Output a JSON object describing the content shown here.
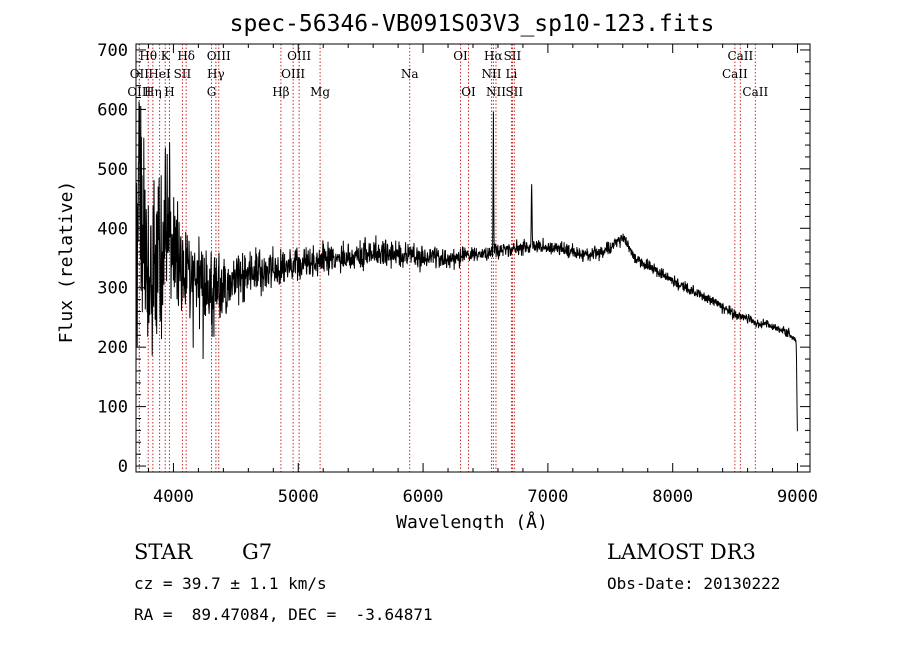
{
  "chart_data": {
    "type": "line",
    "title": "spec-56346-VB091S03V3_sp10-123.fits",
    "xlabel": "Wavelength (Å)",
    "ylabel": "Flux (relative)",
    "xlim": [
      3700,
      9100
    ],
    "ylim": [
      -10,
      710
    ],
    "xticks": [
      4000,
      5000,
      6000,
      7000,
      8000,
      9000
    ],
    "yticks": [
      0,
      100,
      200,
      300,
      400,
      500,
      600,
      700
    ],
    "continuum_anchors": [
      [
        3700,
        180
      ],
      [
        3720,
        520
      ],
      [
        3750,
        380
      ],
      [
        3800,
        350
      ],
      [
        3850,
        330
      ],
      [
        3900,
        360
      ],
      [
        3950,
        390
      ],
      [
        4000,
        370
      ],
      [
        4100,
        330
      ],
      [
        4200,
        300
      ],
      [
        4300,
        290
      ],
      [
        4400,
        300
      ],
      [
        4500,
        315
      ],
      [
        4700,
        325
      ],
      [
        4900,
        335
      ],
      [
        5000,
        340
      ],
      [
        5200,
        345
      ],
      [
        5400,
        352
      ],
      [
        5600,
        358
      ],
      [
        5800,
        355
      ],
      [
        6000,
        352
      ],
      [
        6200,
        350
      ],
      [
        6400,
        355
      ],
      [
        6550,
        360
      ],
      [
        6700,
        365
      ],
      [
        6900,
        370
      ],
      [
        7100,
        365
      ],
      [
        7300,
        355
      ],
      [
        7500,
        365
      ],
      [
        7600,
        385
      ],
      [
        7700,
        350
      ],
      [
        7900,
        325
      ],
      [
        8100,
        300
      ],
      [
        8300,
        280
      ],
      [
        8500,
        255
      ],
      [
        8700,
        240
      ],
      [
        8900,
        228
      ],
      [
        8990,
        210
      ],
      [
        9000,
        40
      ]
    ],
    "noise_anchors": [
      [
        3700,
        200
      ],
      [
        3800,
        160
      ],
      [
        3900,
        130
      ],
      [
        4000,
        95
      ],
      [
        4200,
        80
      ],
      [
        4400,
        60
      ],
      [
        4600,
        40
      ],
      [
        5000,
        28
      ],
      [
        6000,
        18
      ],
      [
        6500,
        14
      ],
      [
        7000,
        12
      ],
      [
        8000,
        9
      ],
      [
        9000,
        7
      ]
    ],
    "emission_features": [
      {
        "x": 6563,
        "height": 240,
        "width": 3
      },
      {
        "x": 6870,
        "height": 105,
        "width": 4
      },
      {
        "x": 3968,
        "height": 150,
        "width": 3
      },
      {
        "x": 3934,
        "height": 110,
        "width": 3
      }
    ],
    "spectral_lines": [
      {
        "label": "Hθ",
        "x": 3798,
        "row": 0
      },
      {
        "label": "OII",
        "x": 3727,
        "row": 1
      },
      {
        "label": "OIII",
        "x": 3727,
        "row": 2
      },
      {
        "label": "Hη",
        "x": 3835,
        "row": 2
      },
      {
        "label": "HeI",
        "x": 3889,
        "row": 1
      },
      {
        "label": "K",
        "x": 3934,
        "row": 0
      },
      {
        "label": "H",
        "x": 3968,
        "row": 2
      },
      {
        "label": "Hδ",
        "x": 4102,
        "row": 0
      },
      {
        "label": "SII",
        "x": 4072,
        "row": 1
      },
      {
        "label": "OIII",
        "x": 4363,
        "row": 0
      },
      {
        "label": "Hγ",
        "x": 4340,
        "row": 1
      },
      {
        "label": "G",
        "x": 4305,
        "row": 2
      },
      {
        "label": "OIII",
        "x": 5007,
        "row": 0
      },
      {
        "label": "OIII",
        "x": 4959,
        "row": 1
      },
      {
        "label": "Hβ",
        "x": 4861,
        "row": 2
      },
      {
        "label": "Mg",
        "x": 5175,
        "row": 2
      },
      {
        "label": "Na",
        "x": 5893,
        "row": 1
      },
      {
        "label": "OI",
        "x": 6300,
        "row": 0
      },
      {
        "label": "OI",
        "x": 6364,
        "row": 2
      },
      {
        "label": "Hα",
        "x": 6563,
        "row": 0
      },
      {
        "label": "SII",
        "x": 6716,
        "row": 0
      },
      {
        "label": "NII",
        "x": 6548,
        "row": 1
      },
      {
        "label": "Li",
        "x": 6708,
        "row": 1
      },
      {
        "label": "NII",
        "x": 6584,
        "row": 2
      },
      {
        "label": "SII",
        "x": 6731,
        "row": 2
      },
      {
        "label": "CaII",
        "x": 8542,
        "row": 0
      },
      {
        "label": "CaII",
        "x": 8498,
        "row": 1
      },
      {
        "label": "CaII",
        "x": 8662,
        "row": 2
      }
    ]
  },
  "info": {
    "class": "STAR",
    "subclass": "G7",
    "survey": "LAMOST DR3",
    "redshift": "cz = 39.7 ± 1.1 km/s",
    "obs_date": "Obs-Date: 20130222",
    "coords": "RA =  89.47084, DEC =  -3.64871"
  },
  "colors": {
    "spectrum": "#000000",
    "line_markers": "#cc2a2a",
    "axes": "#000000"
  }
}
